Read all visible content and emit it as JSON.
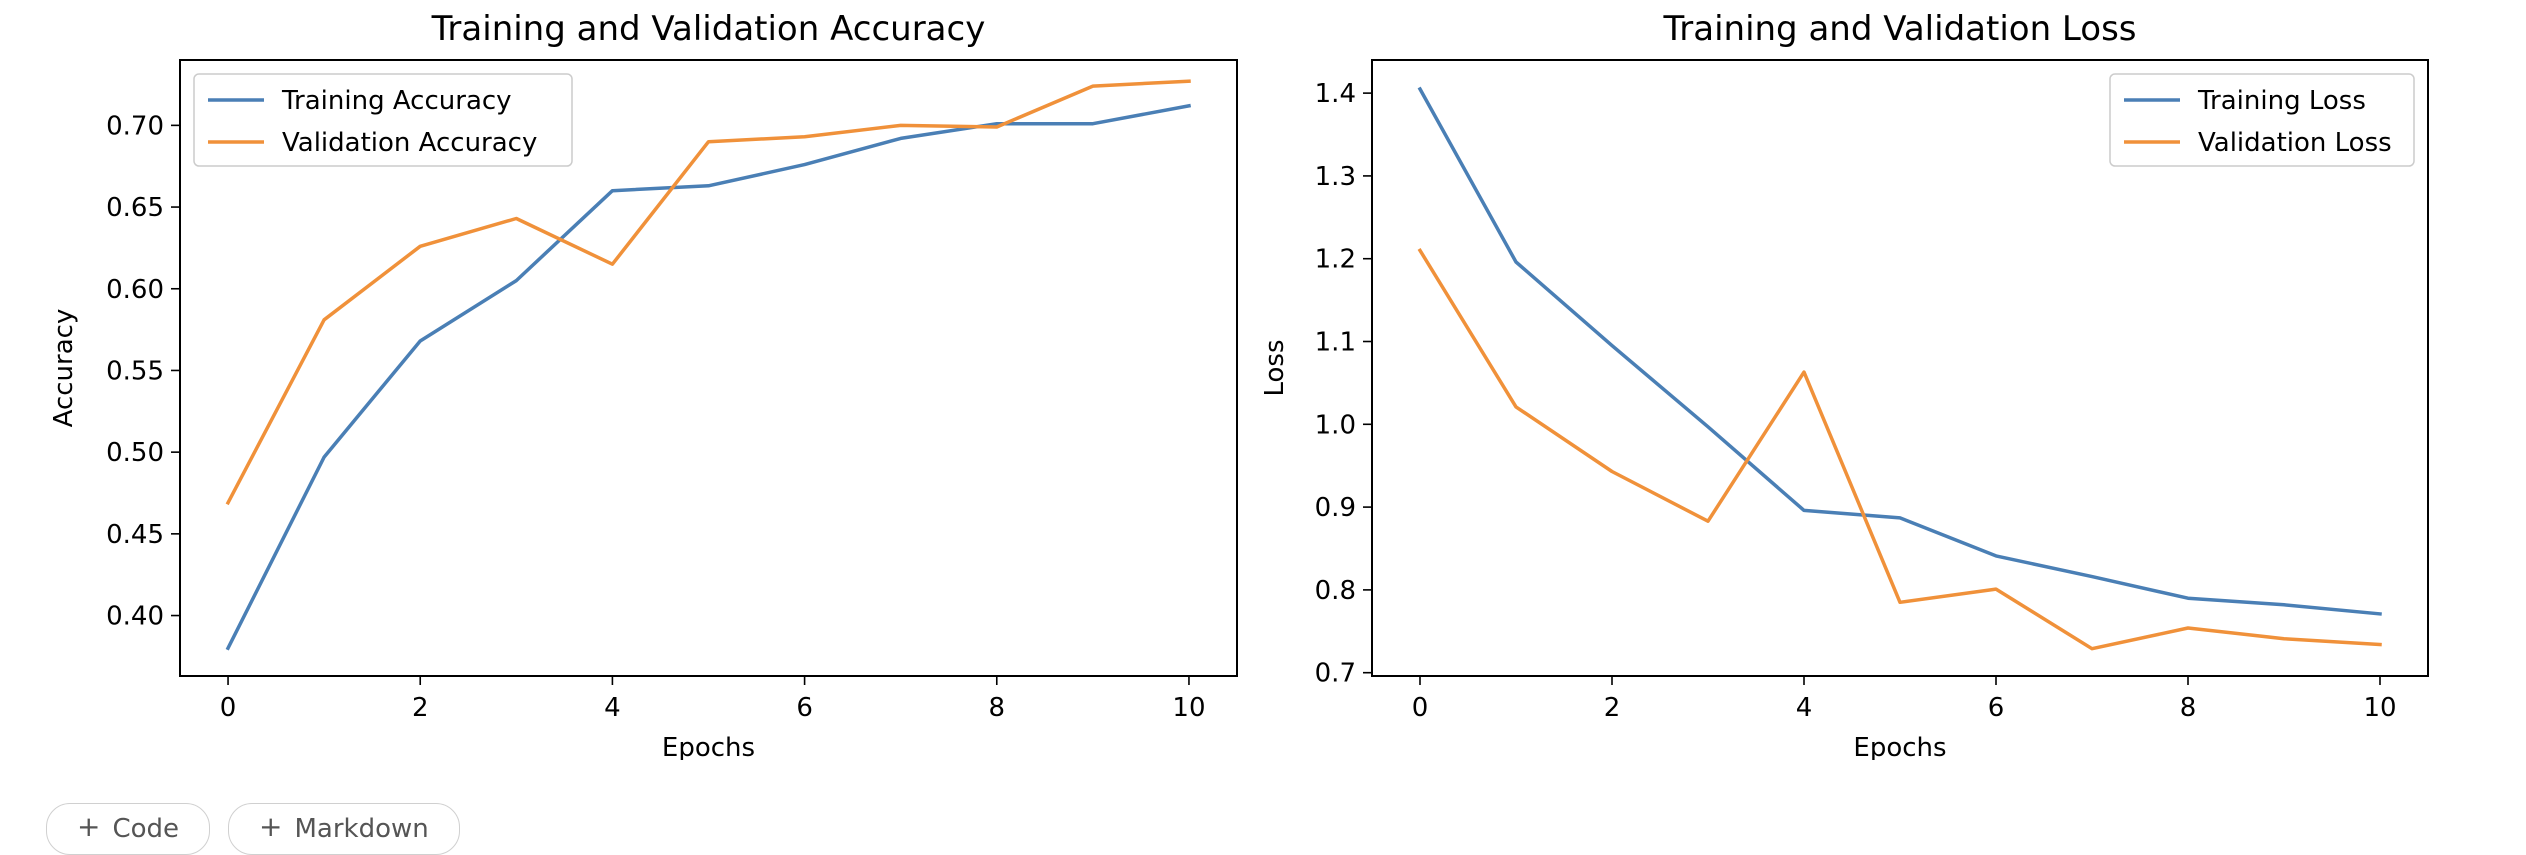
{
  "chart_data": [
    {
      "type": "line",
      "title": "Training and Validation Accuracy",
      "xlabel": "Epochs",
      "ylabel": "Accuracy",
      "x": [
        0,
        1,
        2,
        3,
        4,
        5,
        6,
        7,
        8,
        9,
        10
      ],
      "xlim": [
        -0.5,
        10.5
      ],
      "ylim": [
        0.363,
        0.74
      ],
      "xticks": [
        "0",
        "2",
        "4",
        "6",
        "8",
        "10"
      ],
      "yticks": [
        "0.40",
        "0.45",
        "0.50",
        "0.55",
        "0.60",
        "0.65",
        "0.70"
      ],
      "legend": "upper left",
      "grid": false,
      "series": [
        {
          "name": "Training Accuracy",
          "color": "#4a7fb5",
          "values": [
            0.38,
            0.497,
            0.568,
            0.605,
            0.66,
            0.663,
            0.676,
            0.692,
            0.701,
            0.701,
            0.712
          ]
        },
        {
          "name": "Validation Accuracy",
          "color": "#f0913a",
          "values": [
            0.469,
            0.581,
            0.626,
            0.643,
            0.615,
            0.69,
            0.693,
            0.7,
            0.699,
            0.724,
            0.727
          ]
        }
      ]
    },
    {
      "type": "line",
      "title": "Training and Validation Loss",
      "xlabel": "Epochs",
      "ylabel": "Loss",
      "x": [
        0,
        1,
        2,
        3,
        4,
        5,
        6,
        7,
        8,
        9,
        10
      ],
      "xlim": [
        -0.5,
        10.5
      ],
      "ylim": [
        0.696,
        1.44
      ],
      "xticks": [
        "0",
        "2",
        "4",
        "6",
        "8",
        "10"
      ],
      "yticks": [
        "0.7",
        "0.8",
        "0.9",
        "1.0",
        "1.1",
        "1.2",
        "1.3",
        "1.4"
      ],
      "legend": "upper right",
      "grid": false,
      "series": [
        {
          "name": "Training Loss",
          "color": "#4a7fb5",
          "values": [
            1.405,
            1.196,
            1.095,
            0.997,
            0.896,
            0.887,
            0.841,
            0.816,
            0.79,
            0.782,
            0.771
          ]
        },
        {
          "name": "Validation Loss",
          "color": "#f0913a",
          "values": [
            1.21,
            1.021,
            0.943,
            0.883,
            1.063,
            0.785,
            0.801,
            0.729,
            0.754,
            0.741,
            0.734
          ]
        }
      ]
    }
  ],
  "toolbar": {
    "code_label": "Code",
    "markdown_label": "Markdown",
    "plus_glyph": "+"
  }
}
